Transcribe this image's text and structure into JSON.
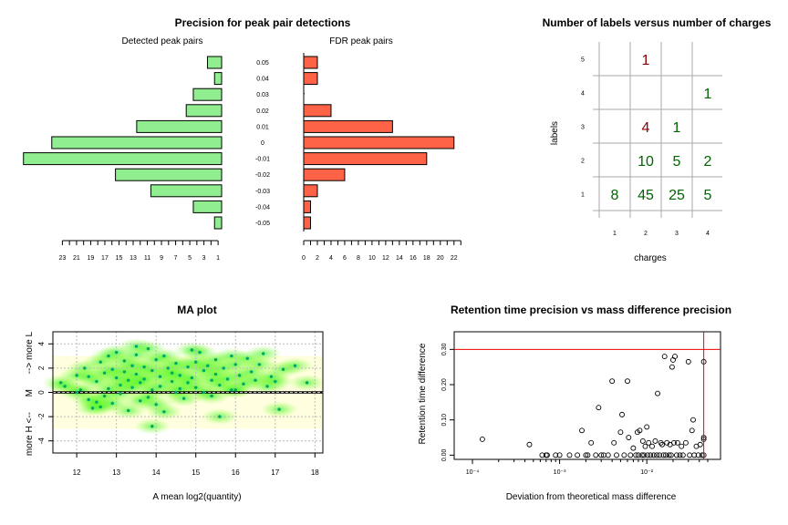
{
  "chart_data": [
    {
      "type": "bar",
      "title": "Precision for peak pair detections",
      "subtitle": "Detected peak pairs",
      "orientation": "horizontal",
      "direction": "right-to-left",
      "categories": [
        "0.05",
        "0.04",
        "0.03",
        "0.02",
        "0.01",
        "0",
        "-0.01",
        "-0.02",
        "-0.03",
        "-0.04",
        "-0.05"
      ],
      "values": [
        2,
        1,
        4,
        5,
        12,
        24,
        28,
        15,
        10,
        4,
        1
      ],
      "xticks": [
        "23",
        "21",
        "19",
        "17",
        "15",
        "13",
        "11",
        "9",
        "7",
        "5",
        "3",
        "1"
      ],
      "color": "#90ee90"
    },
    {
      "type": "bar",
      "subtitle": "FDR peak pairs",
      "orientation": "horizontal",
      "categories": [
        "0.05",
        "0.04",
        "0.03",
        "0.02",
        "0.01",
        "0",
        "-0.01",
        "-0.02",
        "-0.03",
        "-0.04",
        "-0.05"
      ],
      "values": [
        2,
        2,
        0,
        4,
        13,
        22,
        18,
        6,
        2,
        1,
        1
      ],
      "xlim": [
        0,
        23
      ],
      "xticks": [
        "0",
        "2",
        "4",
        "6",
        "8",
        "10",
        "12",
        "14",
        "16",
        "18",
        "20",
        "22"
      ],
      "color": "#ff6347"
    },
    {
      "type": "table",
      "title": "Number of labels versus number of charges",
      "xlabel": "charges",
      "ylabel": "labels",
      "xticks": [
        "1",
        "2",
        "3",
        "4"
      ],
      "yticks": [
        "1",
        "2",
        "3",
        "4",
        "5"
      ],
      "cells": [
        {
          "x": 1,
          "y": 1,
          "text": "8",
          "color": "#006400"
        },
        {
          "x": 2,
          "y": 1,
          "text": "45",
          "color": "#006400"
        },
        {
          "x": 3,
          "y": 1,
          "text": "25",
          "color": "#006400"
        },
        {
          "x": 4,
          "y": 1,
          "text": "5",
          "color": "#006400"
        },
        {
          "x": 2,
          "y": 2,
          "text": "10",
          "color": "#006400"
        },
        {
          "x": 3,
          "y": 2,
          "text": "5",
          "color": "#006400"
        },
        {
          "x": 4,
          "y": 2,
          "text": "2",
          "color": "#006400"
        },
        {
          "x": 2,
          "y": 3,
          "text": "4",
          "color": "#8b0000"
        },
        {
          "x": 3,
          "y": 3,
          "text": "1",
          "color": "#006400"
        },
        {
          "x": 4,
          "y": 4,
          "text": "1",
          "color": "#006400"
        },
        {
          "x": 2,
          "y": 5,
          "text": "1",
          "color": "#8b0000"
        }
      ]
    },
    {
      "type": "scatter",
      "title": "MA plot",
      "xlabel": "A   mean log2(quantity)",
      "ylabel": "more H <--      M      --> more L",
      "xlim": [
        11.4,
        18.2
      ],
      "ylim": [
        -5,
        5
      ],
      "xticks": [
        "12",
        "13",
        "14",
        "15",
        "16",
        "17",
        "18"
      ],
      "yticks": [
        "-4",
        "-2",
        "0",
        "2",
        "4"
      ],
      "band": [
        -3,
        3
      ],
      "points": [
        [
          11.6,
          0.8
        ],
        [
          11.7,
          0.5
        ],
        [
          12.0,
          1.4
        ],
        [
          12.1,
          0.2
        ],
        [
          12.2,
          2.0
        ],
        [
          12.3,
          1.3
        ],
        [
          12.3,
          -0.6
        ],
        [
          12.4,
          -1.3
        ],
        [
          12.5,
          0.9
        ],
        [
          12.5,
          -0.8
        ],
        [
          12.6,
          -1.2
        ],
        [
          12.6,
          2.5
        ],
        [
          12.7,
          1.6
        ],
        [
          12.7,
          -0.3
        ],
        [
          12.8,
          3.0
        ],
        [
          12.8,
          0.3
        ],
        [
          12.9,
          1.9
        ],
        [
          12.9,
          -0.9
        ],
        [
          13.0,
          1.2
        ],
        [
          13.0,
          3.3
        ],
        [
          13.1,
          0.6
        ],
        [
          13.1,
          -0.1
        ],
        [
          13.2,
          2.6
        ],
        [
          13.2,
          1.7
        ],
        [
          13.3,
          1.0
        ],
        [
          13.3,
          -1.5
        ],
        [
          13.4,
          2.2
        ],
        [
          13.4,
          0.4
        ],
        [
          13.5,
          3.1
        ],
        [
          13.5,
          1.5
        ],
        [
          13.6,
          0.8
        ],
        [
          13.6,
          -0.7
        ],
        [
          13.7,
          2.1
        ],
        [
          13.7,
          1.1
        ],
        [
          13.8,
          3.6
        ],
        [
          13.8,
          -0.4
        ],
        [
          13.9,
          1.8
        ],
        [
          13.9,
          0.2
        ],
        [
          14.0,
          2.7
        ],
        [
          14.0,
          -1.0
        ],
        [
          14.1,
          1.3
        ],
        [
          14.1,
          0.5
        ],
        [
          14.2,
          3.0
        ],
        [
          14.2,
          -1.6
        ],
        [
          14.3,
          2.0
        ],
        [
          14.4,
          0.9
        ],
        [
          14.4,
          1.6
        ],
        [
          14.5,
          2.4
        ],
        [
          14.6,
          0.3
        ],
        [
          14.6,
          1.4
        ],
        [
          14.7,
          -0.5
        ],
        [
          14.8,
          2.1
        ],
        [
          14.8,
          0.8
        ],
        [
          14.9,
          1.2
        ],
        [
          15.0,
          0.4
        ],
        [
          15.0,
          2.5
        ],
        [
          15.1,
          3.3
        ],
        [
          15.2,
          1.8
        ],
        [
          15.2,
          0.0
        ],
        [
          15.3,
          2.2
        ],
        [
          15.4,
          1.0
        ],
        [
          15.4,
          -0.3
        ],
        [
          15.5,
          2.7
        ],
        [
          15.5,
          1.5
        ],
        [
          15.6,
          0.6
        ],
        [
          15.7,
          2.0
        ],
        [
          15.8,
          1.1
        ],
        [
          15.9,
          3.0
        ],
        [
          15.9,
          0.2
        ],
        [
          16.0,
          2.3
        ],
        [
          16.1,
          1.4
        ],
        [
          16.2,
          0.7
        ],
        [
          16.3,
          2.8
        ],
        [
          16.4,
          1.7
        ],
        [
          16.5,
          1.0
        ],
        [
          16.6,
          2.3
        ],
        [
          16.8,
          0.5
        ],
        [
          16.9,
          1.3
        ],
        [
          17.0,
          0.9
        ],
        [
          17.2,
          1.9
        ],
        [
          17.5,
          2.2
        ],
        [
          17.8,
          0.8
        ],
        [
          13.9,
          -2.8
        ],
        [
          15.6,
          -2.0
        ],
        [
          17.1,
          -1.4
        ],
        [
          14.5,
          0.0
        ],
        [
          16.0,
          0.2
        ],
        [
          12.0,
          0.0
        ],
        [
          13.5,
          3.8
        ],
        [
          14.9,
          3.5
        ],
        [
          16.7,
          3.2
        ]
      ]
    },
    {
      "type": "scatter",
      "title": "Retention time precision vs mass difference precision",
      "xlabel": "Deviation from theoretical mass difference",
      "ylabel": "Retention time difference",
      "xscale": "log",
      "xlim": [
        0.0001,
        0.05
      ],
      "ylim": [
        0,
        0.35
      ],
      "xticks": [
        "10⁻⁴",
        "10⁻³",
        "10⁻²"
      ],
      "yticks": [
        "0.00",
        "0.10",
        "0.20",
        "0.30"
      ],
      "hline": 0.3,
      "vline": 0.045,
      "points": [
        [
          0.00013,
          0.045
        ],
        [
          0.00045,
          0.03
        ],
        [
          0.00063,
          0.0
        ],
        [
          0.0007,
          0.0
        ],
        [
          0.00072,
          0.0
        ],
        [
          0.0009,
          0.0
        ],
        [
          0.001,
          0.0
        ],
        [
          0.0013,
          0.0
        ],
        [
          0.0016,
          0.0
        ],
        [
          0.0018,
          0.07
        ],
        [
          0.002,
          0.0
        ],
        [
          0.0021,
          0.0
        ],
        [
          0.0023,
          0.035
        ],
        [
          0.0026,
          0.0
        ],
        [
          0.0028,
          0.135
        ],
        [
          0.003,
          0.0
        ],
        [
          0.0032,
          0.0
        ],
        [
          0.0036,
          0.0
        ],
        [
          0.004,
          0.21
        ],
        [
          0.0042,
          0.035
        ],
        [
          0.0045,
          0.0
        ],
        [
          0.005,
          0.065
        ],
        [
          0.0052,
          0.115
        ],
        [
          0.0055,
          0.0
        ],
        [
          0.006,
          0.21
        ],
        [
          0.0062,
          0.05
        ],
        [
          0.0065,
          0.0
        ],
        [
          0.007,
          0.02
        ],
        [
          0.0075,
          0.0
        ],
        [
          0.0078,
          0.065
        ],
        [
          0.008,
          0.0
        ],
        [
          0.0083,
          0.07
        ],
        [
          0.0088,
          0.0
        ],
        [
          0.009,
          0.04
        ],
        [
          0.0093,
          0.0
        ],
        [
          0.0096,
          0.025
        ],
        [
          0.01,
          0.08
        ],
        [
          0.0102,
          0.0
        ],
        [
          0.0105,
          0.035
        ],
        [
          0.011,
          0.0
        ],
        [
          0.0115,
          0.025
        ],
        [
          0.012,
          0.0
        ],
        [
          0.0125,
          0.04
        ],
        [
          0.013,
          0.0
        ],
        [
          0.0133,
          0.175
        ],
        [
          0.014,
          0.0
        ],
        [
          0.0145,
          0.035
        ],
        [
          0.015,
          0.03
        ],
        [
          0.0155,
          0.0
        ],
        [
          0.016,
          0.28
        ],
        [
          0.0165,
          0.0
        ],
        [
          0.017,
          0.035
        ],
        [
          0.018,
          0.0
        ],
        [
          0.0185,
          0.03
        ],
        [
          0.019,
          0.0
        ],
        [
          0.0195,
          0.25
        ],
        [
          0.02,
          0.27
        ],
        [
          0.0205,
          0.035
        ],
        [
          0.021,
          0.28
        ],
        [
          0.022,
          0.0
        ],
        [
          0.0225,
          0.035
        ],
        [
          0.024,
          0.0
        ],
        [
          0.025,
          0.025
        ],
        [
          0.026,
          0.0
        ],
        [
          0.028,
          0.035
        ],
        [
          0.03,
          0.265
        ],
        [
          0.031,
          0.0
        ],
        [
          0.033,
          0.07
        ],
        [
          0.034,
          0.1
        ],
        [
          0.035,
          0.0
        ],
        [
          0.037,
          0.025
        ],
        [
          0.039,
          0.0
        ],
        [
          0.041,
          0.03
        ],
        [
          0.043,
          0.0
        ],
        [
          0.045,
          0.045
        ],
        [
          0.045,
          0.05
        ],
        [
          0.045,
          0.265
        ],
        [
          0.045,
          0.0
        ]
      ]
    }
  ]
}
